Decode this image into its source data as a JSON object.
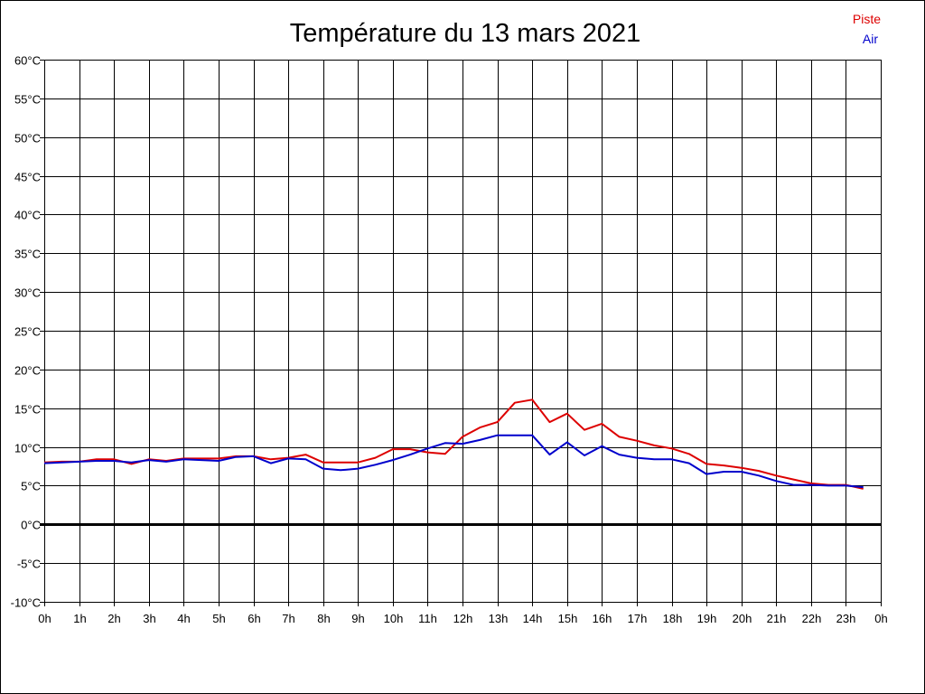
{
  "chart_data": {
    "type": "line",
    "title": "Température du 13 mars 2021",
    "xlabel": "",
    "ylabel": "",
    "xlim": [
      0,
      24
    ],
    "ylim": [
      -10,
      60
    ],
    "grid": true,
    "legend_position": "top-right",
    "x_ticks": [
      "0h",
      "1h",
      "2h",
      "3h",
      "4h",
      "5h",
      "6h",
      "7h",
      "8h",
      "9h",
      "10h",
      "11h",
      "12h",
      "13h",
      "14h",
      "15h",
      "16h",
      "17h",
      "18h",
      "19h",
      "20h",
      "21h",
      "22h",
      "23h",
      "0h"
    ],
    "y_ticks": [
      "-10°C",
      "-5°C",
      "0°C",
      "5°C",
      "10°C",
      "15°C",
      "20°C",
      "25°C",
      "30°C",
      "35°C",
      "40°C",
      "45°C",
      "50°C",
      "55°C",
      "60°C"
    ],
    "y_tick_values": [
      -10,
      -5,
      0,
      5,
      10,
      15,
      20,
      25,
      30,
      35,
      40,
      45,
      50,
      55,
      60
    ],
    "zero_line": 0,
    "x": [
      0,
      0.5,
      1,
      1.5,
      2,
      2.5,
      3,
      3.5,
      4,
      4.5,
      5,
      5.5,
      6,
      6.5,
      7,
      7.5,
      8,
      8.5,
      9,
      9.5,
      10,
      10.5,
      11,
      11.5,
      12,
      12.5,
      13,
      13.5,
      14,
      14.5,
      15,
      15.5,
      16,
      16.5,
      17,
      17.5,
      18,
      18.5,
      19,
      19.5,
      20,
      20.5,
      21,
      21.5,
      22,
      22.5,
      23,
      23.5
    ],
    "series": [
      {
        "name": "Piste",
        "color": "#dd0000",
        "values": [
          8.0,
          8.1,
          8.1,
          8.4,
          8.4,
          7.8,
          8.4,
          8.2,
          8.5,
          8.5,
          8.5,
          8.8,
          8.8,
          8.4,
          8.6,
          9.0,
          8.0,
          8.0,
          8.0,
          8.6,
          9.7,
          9.7,
          9.3,
          9.1,
          11.3,
          12.5,
          13.2,
          15.7,
          16.1,
          13.2,
          14.3,
          12.2,
          13.0,
          11.3,
          10.8,
          10.2,
          9.8,
          9.1,
          7.8,
          7.6,
          7.3,
          6.9,
          6.3,
          5.8,
          5.3,
          5.1,
          5.1,
          4.6
        ]
      },
      {
        "name": "Air",
        "color": "#0000cc",
        "values": [
          7.9,
          8.0,
          8.1,
          8.2,
          8.2,
          8.0,
          8.3,
          8.1,
          8.4,
          8.3,
          8.2,
          8.7,
          8.8,
          7.9,
          8.5,
          8.4,
          7.2,
          7.0,
          7.2,
          7.7,
          8.3,
          9.0,
          9.8,
          10.5,
          10.4,
          10.9,
          11.5,
          11.5,
          11.5,
          9.0,
          10.6,
          8.9,
          10.1,
          9.0,
          8.6,
          8.4,
          8.4,
          7.9,
          6.5,
          6.8,
          6.8,
          6.3,
          5.6,
          5.1,
          5.1,
          5.0,
          5.0,
          4.8
        ]
      }
    ]
  }
}
